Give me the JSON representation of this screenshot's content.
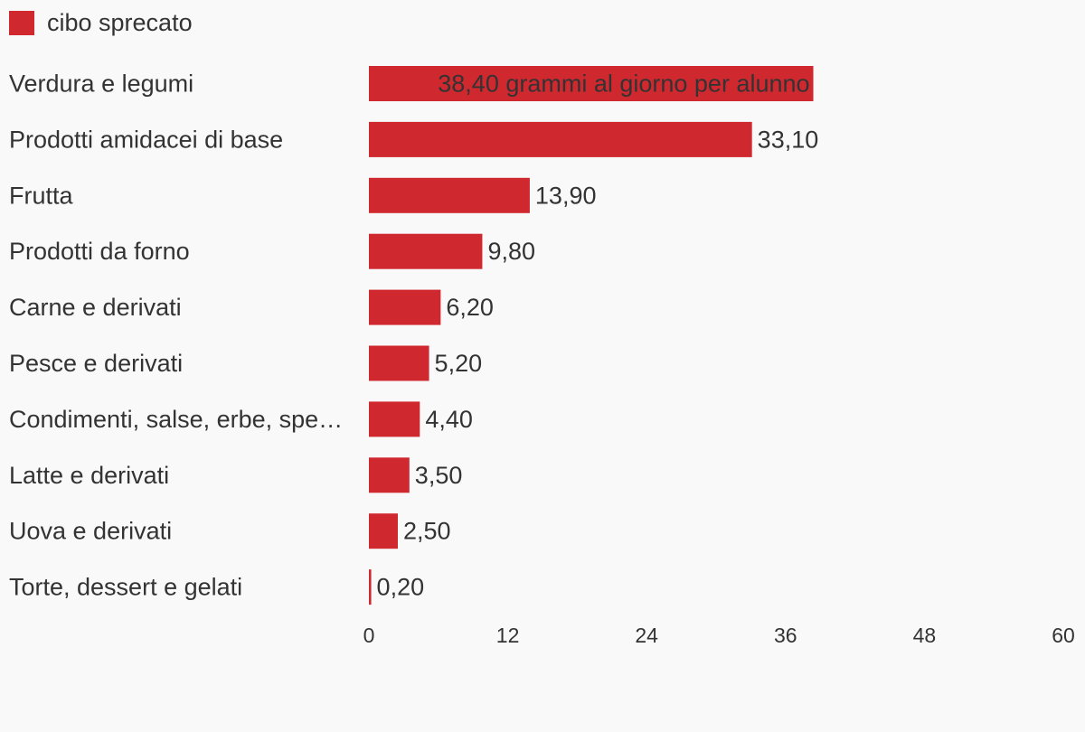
{
  "chart_data": {
    "type": "bar",
    "orientation": "horizontal",
    "legend": {
      "label": "cibo sprecato",
      "placement": "top-left"
    },
    "series": [
      {
        "name": "cibo sprecato",
        "color": "#d0282f",
        "values": [
          38.4,
          33.1,
          13.9,
          9.8,
          6.2,
          5.2,
          4.4,
          3.5,
          2.5,
          0.2
        ]
      }
    ],
    "categories": [
      "Verdura e legumi",
      "Prodotti amidacei di base",
      "Frutta",
      "Prodotti da forno",
      "Carne e derivati",
      "Pesce e derivati",
      "Condimenti, salse, erbe, spe…",
      "Latte e derivati",
      "Uova e derivati",
      "Torte, dessert e gelati"
    ],
    "value_labels": [
      "38,40 grammi al giorno per alunno",
      "33,10",
      "13,90",
      "9,80",
      "6,20",
      "5,20",
      "4,40",
      "3,50",
      "2,50",
      "0,20"
    ],
    "xlim": [
      0,
      60
    ],
    "x_ticks": [
      0,
      12,
      24,
      36,
      48,
      60
    ],
    "x_tick_labels": [
      "0",
      "12",
      "24",
      "36",
      "48",
      "60"
    ],
    "grid": false
  }
}
